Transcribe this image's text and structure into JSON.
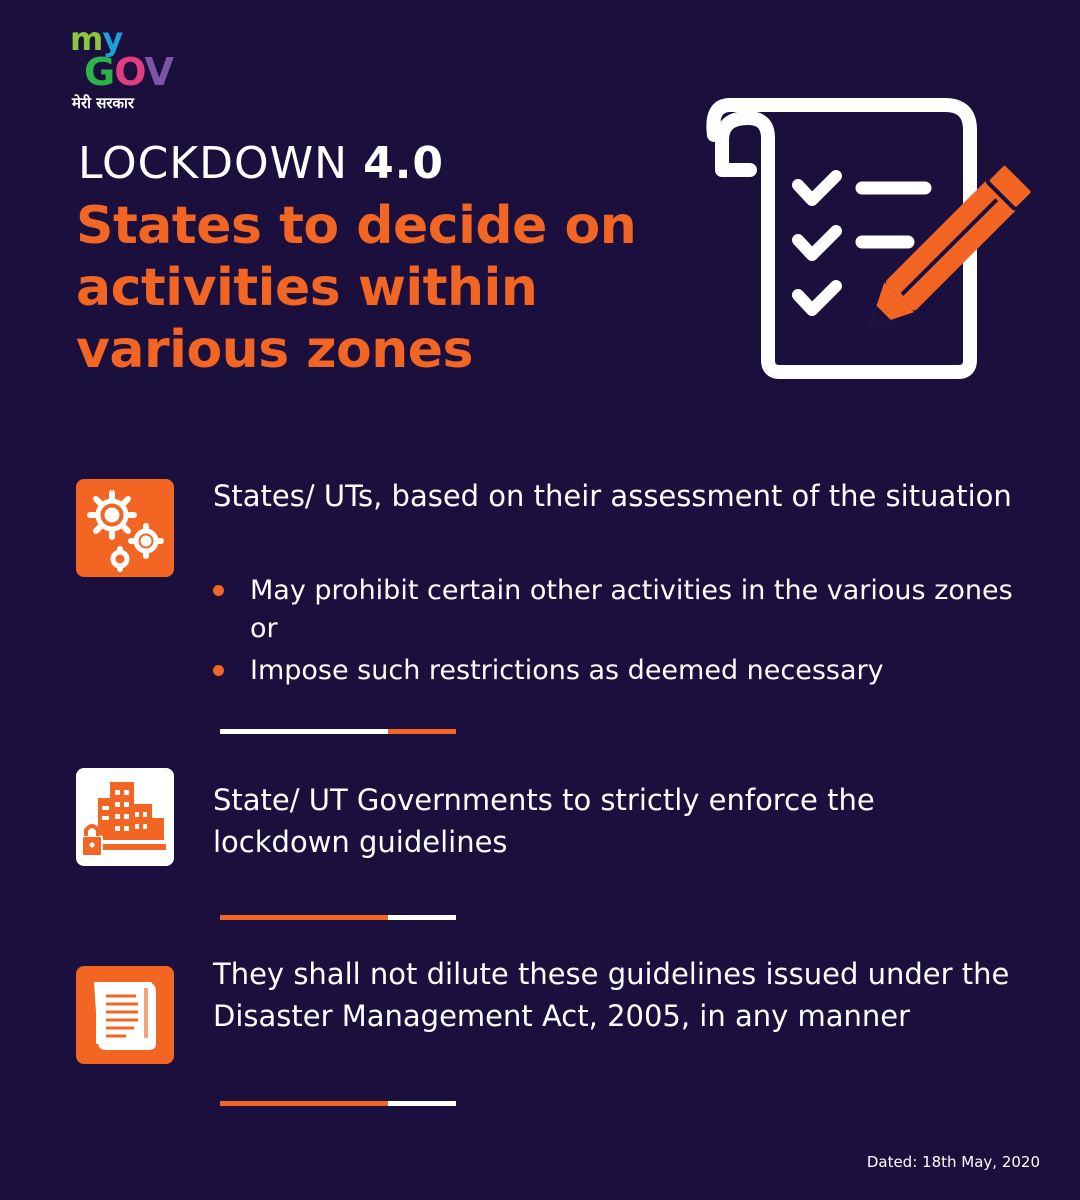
{
  "logo": {
    "my_m": "m",
    "my_y": "y",
    "gov_g": "G",
    "gov_o": "O",
    "gov_v": "V",
    "tagline": "मेरी सरकार"
  },
  "header": {
    "kicker_light": "LOCKDOWN",
    "kicker_bold": "4.0",
    "headline": "States to decide on activities within various zones"
  },
  "sections": [
    {
      "icon": "gears-icon",
      "text": "States/ UTs, based on their assessment of the situation",
      "bullets": [
        "May prohibit certain other activities in the various zones or",
        "Impose such restrictions as deemed necessary"
      ]
    },
    {
      "icon": "buildings-lock-icon",
      "text": "State/ UT Governments to strictly enforce the lockdown guidelines"
    },
    {
      "icon": "scroll-document-icon",
      "text": "They shall not dilute these guidelines issued under the Disaster Management Act, 2005, in any manner"
    }
  ],
  "hero_icon": "checklist-pencil-icon",
  "footer": {
    "date": "Dated: 18th May, 2020"
  },
  "colors": {
    "background": "#1a0f3d",
    "accent": "#f26522",
    "text": "#ffffff"
  }
}
